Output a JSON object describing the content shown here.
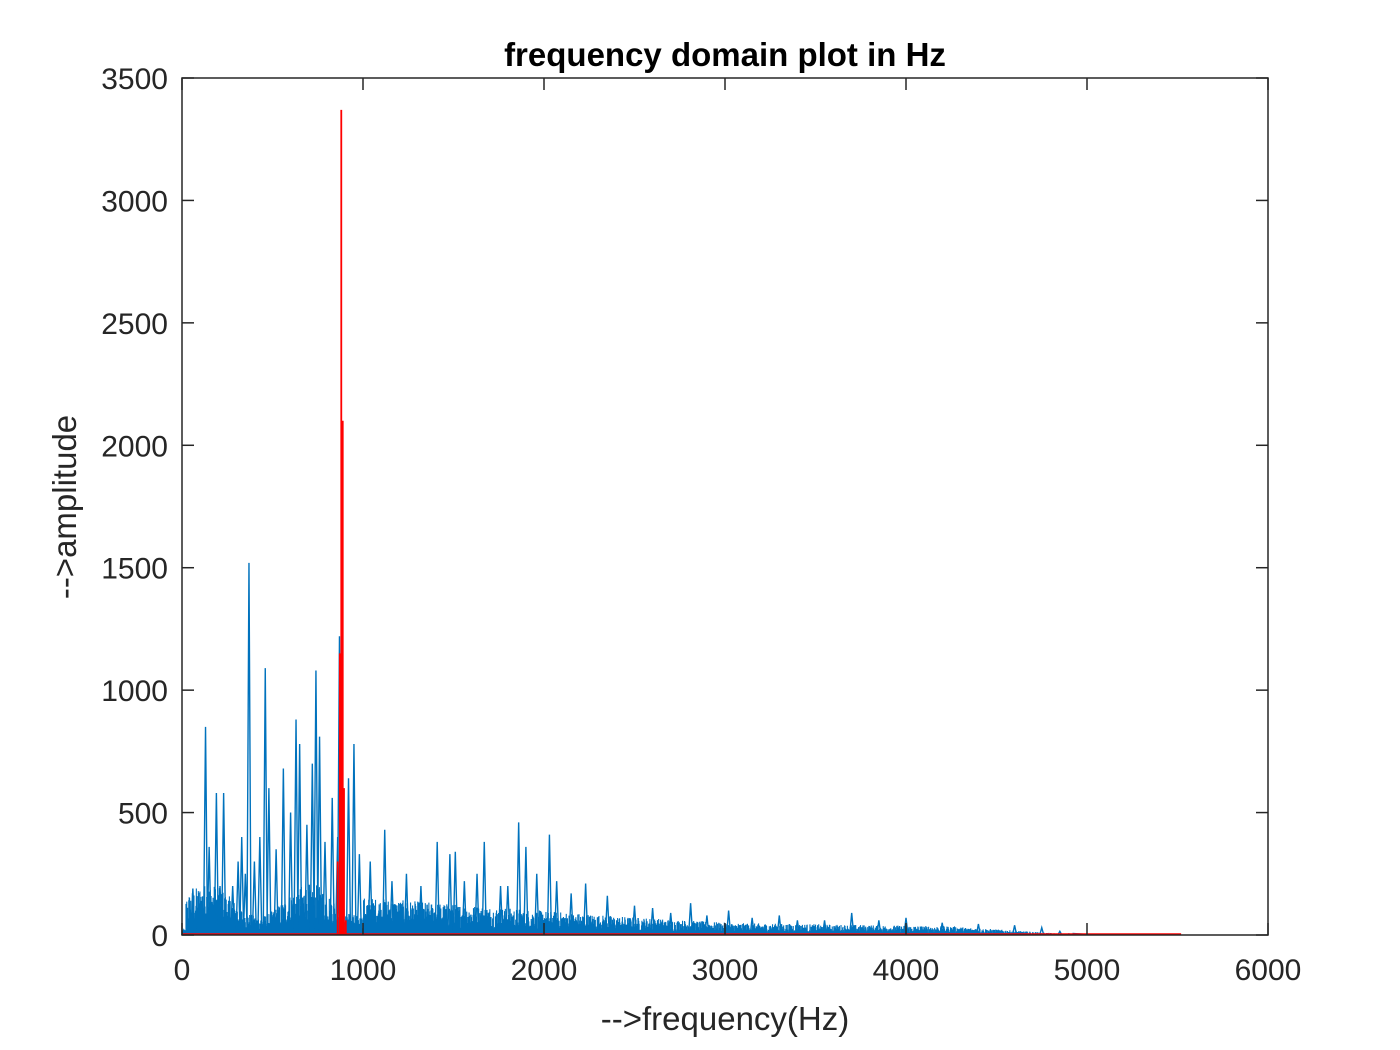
{
  "chart_data": {
    "type": "line",
    "title": "frequency domain plot in Hz",
    "xlabel": "-->frequency(Hz)",
    "ylabel": "-->amplitude",
    "xlim": [
      0,
      6000
    ],
    "ylim": [
      0,
      3500
    ],
    "x_ticks": [
      "0",
      "1000",
      "2000",
      "3000",
      "4000",
      "5000",
      "6000"
    ],
    "y_ticks": [
      "0",
      "500",
      "1000",
      "1500",
      "2000",
      "2500",
      "3000",
      "3500"
    ],
    "grid": false,
    "legend": "none",
    "series": [
      {
        "color": "#0072bd",
        "peaks": [
          [
            10,
            20
          ],
          [
            60,
            190
          ],
          [
            90,
            60
          ],
          [
            130,
            850
          ],
          [
            150,
            360
          ],
          [
            190,
            580
          ],
          [
            210,
            200
          ],
          [
            230,
            580
          ],
          [
            280,
            200
          ],
          [
            310,
            300
          ],
          [
            330,
            400
          ],
          [
            350,
            250
          ],
          [
            370,
            1520
          ],
          [
            400,
            300
          ],
          [
            430,
            400
          ],
          [
            460,
            1090
          ],
          [
            480,
            600
          ],
          [
            520,
            350
          ],
          [
            560,
            680
          ],
          [
            600,
            500
          ],
          [
            630,
            880
          ],
          [
            650,
            780
          ],
          [
            690,
            450
          ],
          [
            720,
            700
          ],
          [
            740,
            1080
          ],
          [
            760,
            810
          ],
          [
            790,
            380
          ],
          [
            830,
            560
          ],
          [
            860,
            400
          ],
          [
            870,
            1220
          ],
          [
            920,
            640
          ],
          [
            950,
            780
          ],
          [
            980,
            330
          ],
          [
            1040,
            300
          ],
          [
            1120,
            430
          ],
          [
            1160,
            220
          ],
          [
            1240,
            250
          ],
          [
            1320,
            200
          ],
          [
            1410,
            380
          ],
          [
            1480,
            330
          ],
          [
            1510,
            340
          ],
          [
            1560,
            220
          ],
          [
            1630,
            250
          ],
          [
            1670,
            380
          ],
          [
            1760,
            200
          ],
          [
            1800,
            200
          ],
          [
            1860,
            460
          ],
          [
            1900,
            360
          ],
          [
            1960,
            250
          ],
          [
            2030,
            410
          ],
          [
            2070,
            220
          ],
          [
            2150,
            170
          ],
          [
            2230,
            210
          ],
          [
            2350,
            160
          ],
          [
            2500,
            120
          ],
          [
            2600,
            110
          ],
          [
            2700,
            90
          ],
          [
            2810,
            130
          ],
          [
            2900,
            80
          ],
          [
            3020,
            100
          ],
          [
            3150,
            70
          ],
          [
            3300,
            80
          ],
          [
            3400,
            60
          ],
          [
            3550,
            60
          ],
          [
            3700,
            90
          ],
          [
            3850,
            60
          ],
          [
            4000,
            70
          ],
          [
            4200,
            50
          ],
          [
            4400,
            45
          ],
          [
            4600,
            40
          ],
          [
            4750,
            30
          ],
          [
            4850,
            15
          ],
          [
            4900,
            5
          ]
        ]
      },
      {
        "color": "#ff0000",
        "peaks": [
          [
            860,
            300
          ],
          [
            872,
            1150
          ],
          [
            880,
            3370
          ],
          [
            888,
            2100
          ],
          [
            895,
            600
          ],
          [
            905,
            60
          ]
        ],
        "tail_end_x": 5520
      }
    ]
  }
}
